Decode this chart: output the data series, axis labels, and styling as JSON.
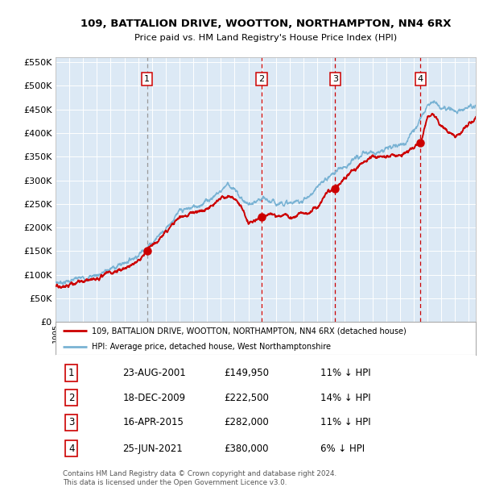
{
  "title": "109, BATTALION DRIVE, WOOTTON, NORTHAMPTON, NN4 6RX",
  "subtitle": "Price paid vs. HM Land Registry's House Price Index (HPI)",
  "background_color": "#ffffff",
  "plot_bg_color": "#dce9f5",
  "grid_color": "#ffffff",
  "hpi_line_color": "#7ab3d4",
  "price_line_color": "#cc0000",
  "ylim": [
    0,
    560000
  ],
  "yticks": [
    0,
    50000,
    100000,
    150000,
    200000,
    250000,
    300000,
    350000,
    400000,
    450000,
    500000,
    550000
  ],
  "sales": [
    {
      "num": 1,
      "x_year": 2001.64,
      "price": 149950,
      "vline_gray": true
    },
    {
      "num": 2,
      "x_year": 2009.96,
      "price": 222500,
      "vline_gray": false
    },
    {
      "num": 3,
      "x_year": 2015.29,
      "price": 282000,
      "vline_gray": false
    },
    {
      "num": 4,
      "x_year": 2021.48,
      "price": 380000,
      "vline_gray": false
    }
  ],
  "legend_entries": [
    {
      "label": "109, BATTALION DRIVE, WOOTTON, NORTHAMPTON, NN4 6RX (detached house)",
      "color": "#cc0000"
    },
    {
      "label": "HPI: Average price, detached house, West Northamptonshire",
      "color": "#7ab3d4"
    }
  ],
  "table_rows": [
    {
      "num": 1,
      "date": "23-AUG-2001",
      "price": "£149,950",
      "pct": "11% ↓ HPI"
    },
    {
      "num": 2,
      "date": "18-DEC-2009",
      "price": "£222,500",
      "pct": "14% ↓ HPI"
    },
    {
      "num": 3,
      "date": "16-APR-2015",
      "price": "£282,000",
      "pct": "11% ↓ HPI"
    },
    {
      "num": 4,
      "date": "25-JUN-2021",
      "price": "£380,000",
      "pct": "6% ↓ HPI"
    }
  ],
  "footer": "Contains HM Land Registry data © Crown copyright and database right 2024.\nThis data is licensed under the Open Government Licence v3.0.",
  "xmin": 1995.0,
  "xmax": 2025.5,
  "hpi_anchors": [
    [
      1995.0,
      83000
    ],
    [
      1996.0,
      87000
    ],
    [
      1997.0,
      93000
    ],
    [
      1998.0,
      100000
    ],
    [
      1999.0,
      112000
    ],
    [
      2000.0,
      126000
    ],
    [
      2001.0,
      143000
    ],
    [
      2002.0,
      168000
    ],
    [
      2003.0,
      200000
    ],
    [
      2004.0,
      232000
    ],
    [
      2005.0,
      243000
    ],
    [
      2006.0,
      257000
    ],
    [
      2007.0,
      278000
    ],
    [
      2007.5,
      295000
    ],
    [
      2008.0,
      278000
    ],
    [
      2008.5,
      262000
    ],
    [
      2009.0,
      248000
    ],
    [
      2009.5,
      250000
    ],
    [
      2010.0,
      258000
    ],
    [
      2010.5,
      255000
    ],
    [
      2011.0,
      252000
    ],
    [
      2011.5,
      255000
    ],
    [
      2012.0,
      250000
    ],
    [
      2012.5,
      253000
    ],
    [
      2013.0,
      260000
    ],
    [
      2013.5,
      268000
    ],
    [
      2014.0,
      282000
    ],
    [
      2014.5,
      300000
    ],
    [
      2015.0,
      312000
    ],
    [
      2015.5,
      322000
    ],
    [
      2016.0,
      332000
    ],
    [
      2016.5,
      340000
    ],
    [
      2017.0,
      348000
    ],
    [
      2017.5,
      355000
    ],
    [
      2018.0,
      360000
    ],
    [
      2018.5,
      363000
    ],
    [
      2019.0,
      367000
    ],
    [
      2019.5,
      370000
    ],
    [
      2020.0,
      375000
    ],
    [
      2020.5,
      385000
    ],
    [
      2021.0,
      405000
    ],
    [
      2021.5,
      435000
    ],
    [
      2022.0,
      462000
    ],
    [
      2022.5,
      468000
    ],
    [
      2023.0,
      455000
    ],
    [
      2023.5,
      450000
    ],
    [
      2024.0,
      448000
    ],
    [
      2024.5,
      452000
    ],
    [
      2025.5,
      458000
    ]
  ],
  "price_anchors": [
    [
      1995.0,
      76000
    ],
    [
      1996.0,
      79000
    ],
    [
      1997.0,
      85000
    ],
    [
      1998.0,
      93000
    ],
    [
      1999.0,
      104000
    ],
    [
      2000.0,
      112000
    ],
    [
      2001.0,
      127000
    ],
    [
      2001.64,
      149950
    ],
    [
      2002.0,
      160000
    ],
    [
      2003.0,
      188000
    ],
    [
      2004.0,
      220000
    ],
    [
      2005.0,
      232000
    ],
    [
      2006.0,
      240000
    ],
    [
      2007.0,
      262000
    ],
    [
      2007.5,
      265000
    ],
    [
      2008.0,
      262000
    ],
    [
      2008.5,
      245000
    ],
    [
      2009.0,
      210000
    ],
    [
      2009.5,
      218000
    ],
    [
      2009.96,
      222500
    ],
    [
      2010.0,
      222000
    ],
    [
      2010.5,
      228000
    ],
    [
      2011.0,
      226000
    ],
    [
      2011.5,
      227000
    ],
    [
      2012.0,
      223000
    ],
    [
      2012.5,
      226000
    ],
    [
      2013.0,
      230000
    ],
    [
      2013.5,
      236000
    ],
    [
      2014.0,
      244000
    ],
    [
      2014.5,
      268000
    ],
    [
      2015.0,
      278000
    ],
    [
      2015.29,
      282000
    ],
    [
      2015.5,
      288000
    ],
    [
      2016.0,
      308000
    ],
    [
      2016.5,
      318000
    ],
    [
      2017.0,
      332000
    ],
    [
      2017.5,
      340000
    ],
    [
      2018.0,
      346000
    ],
    [
      2018.5,
      350000
    ],
    [
      2019.0,
      350000
    ],
    [
      2019.5,
      352000
    ],
    [
      2020.0,
      354000
    ],
    [
      2020.5,
      360000
    ],
    [
      2021.0,
      368000
    ],
    [
      2021.48,
      380000
    ],
    [
      2022.0,
      432000
    ],
    [
      2022.3,
      442000
    ],
    [
      2022.7,
      430000
    ],
    [
      2023.0,
      418000
    ],
    [
      2023.5,
      402000
    ],
    [
      2024.0,
      392000
    ],
    [
      2024.5,
      405000
    ],
    [
      2025.5,
      428000
    ]
  ]
}
